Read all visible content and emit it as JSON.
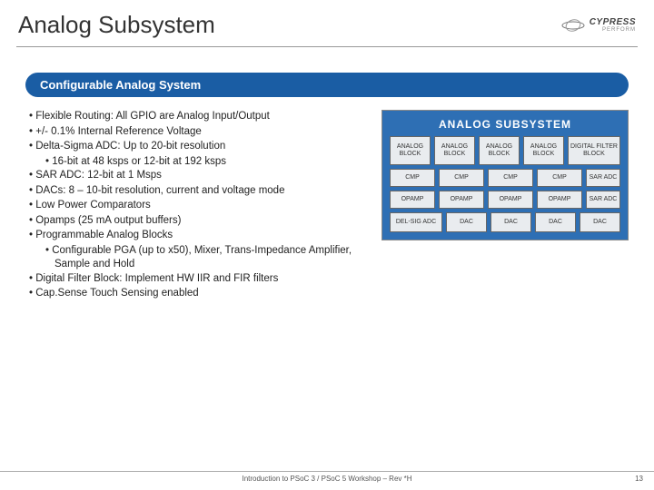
{
  "header": {
    "title": "Analog Subsystem",
    "logo_text": "CYPRESS",
    "logo_sub": "PERFORM"
  },
  "section_banner": "Configurable Analog System",
  "bullets": [
    {
      "text": "Flexible Routing: All GPIO are Analog Input/Output"
    },
    {
      "text": "+/- 0.1% Internal Reference Voltage"
    },
    {
      "text": "Delta-Sigma ADC: Up to 20-bit resolution",
      "sub": [
        "16-bit at 48 ksps or 12-bit at 192 ksps"
      ]
    },
    {
      "text": "SAR ADC:  12-bit at 1 Msps"
    },
    {
      "text": "DACs:  8 – 10-bit resolution, current and voltage mode"
    },
    {
      "text": "Low Power Comparators"
    },
    {
      "text": "Opamps (25 mA output buffers)"
    },
    {
      "text": "Programmable Analog Blocks",
      "sub": [
        "Configurable PGA (up to x50), Mixer, Trans-Impedance Amplifier, Sample and Hold"
      ]
    },
    {
      "text": "Digital Filter Block: Implement HW IIR and FIR filters"
    },
    {
      "text": "Cap.Sense Touch Sensing enabled"
    }
  ],
  "diagram": {
    "title": "ANALOG SUBSYSTEM",
    "analog_block": "ANALOG\nBLOCK",
    "dfb": "DIGITAL\nFILTER BLOCK",
    "cmp": "CMP",
    "sar": "SAR\nADC",
    "opamp": "OPAMP",
    "delsig": "DEL-SIG\nADC",
    "dac": "DAC",
    "bg": "#2e6fb4",
    "block_bg": "#e9ecef"
  },
  "footer": {
    "text": "Introduction to PSoC 3 / PSoC 5 Workshop – Rev *H",
    "page": "13"
  }
}
